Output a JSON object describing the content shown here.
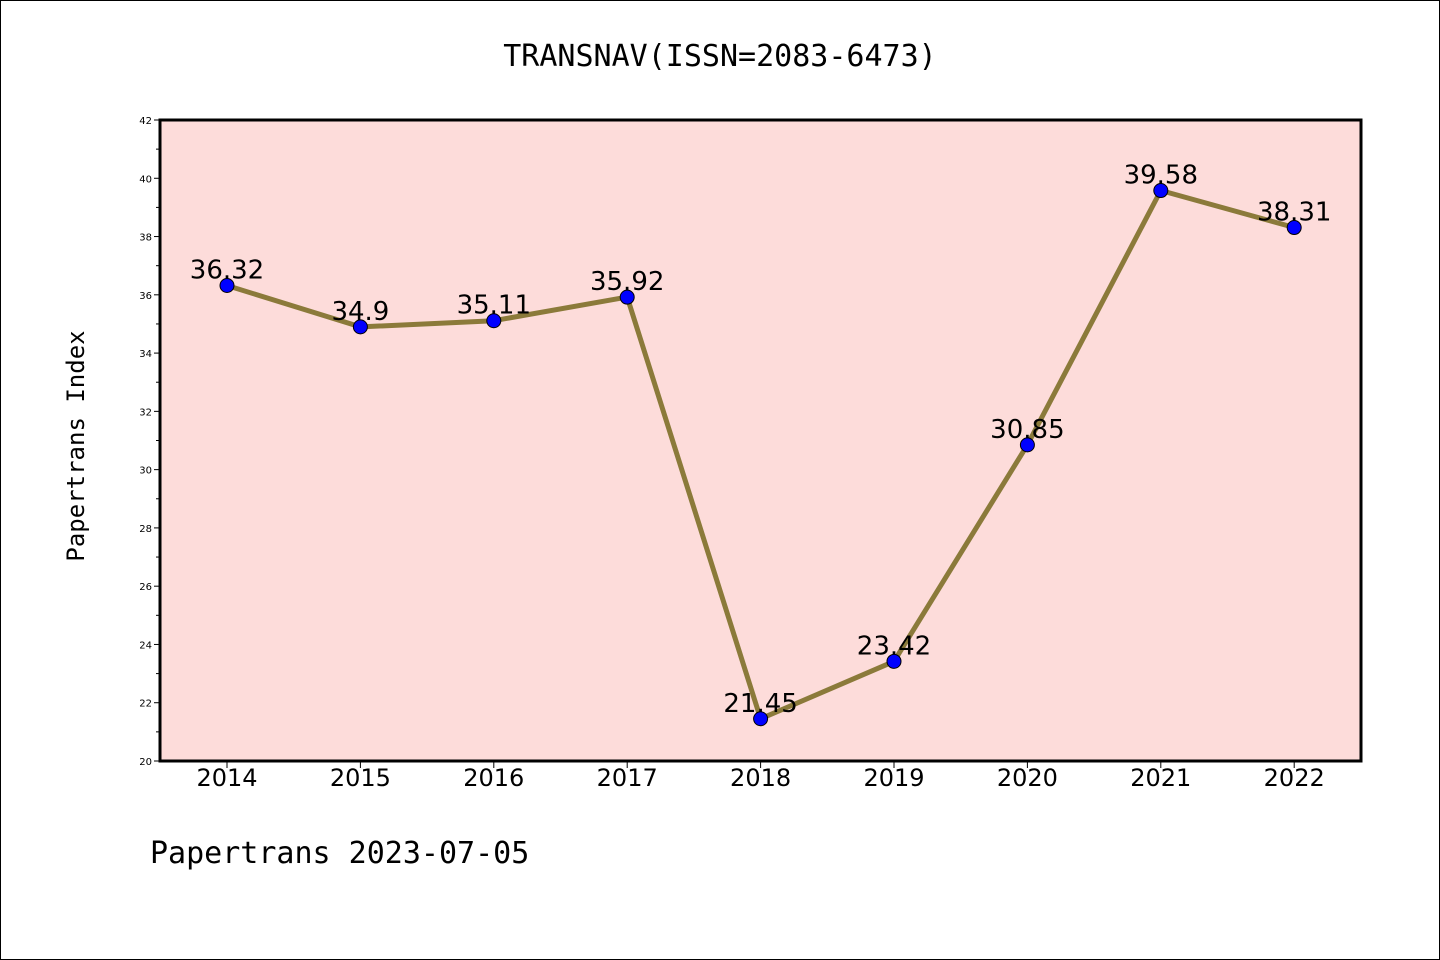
{
  "chart_data": {
    "type": "line",
    "title": "TRANSNAV(ISSN=2083-6473)",
    "xlabel": "",
    "ylabel": "Papertrans Index",
    "categories": [
      "2014",
      "2015",
      "2016",
      "2017",
      "2018",
      "2019",
      "2020",
      "2021",
      "2022"
    ],
    "values": [
      36.32,
      34.9,
      35.11,
      35.92,
      21.45,
      23.42,
      30.85,
      39.58,
      38.31
    ],
    "data_labels": [
      "36.32",
      "34.9",
      "35.11",
      "35.92",
      "21.45",
      "23.42",
      "30.85",
      "39.58",
      "38.31"
    ],
    "ylim": [
      20,
      42
    ],
    "yticks": [
      "20",
      "22",
      "24",
      "26",
      "28",
      "30",
      "32",
      "34",
      "36",
      "38",
      "40",
      "42"
    ],
    "grid": false,
    "legend": "none",
    "colors": {
      "plot_background": "#fddcda",
      "line": "#8b7a3a",
      "marker": "#0000ff"
    }
  },
  "footer": "Papertrans 2023-07-05"
}
